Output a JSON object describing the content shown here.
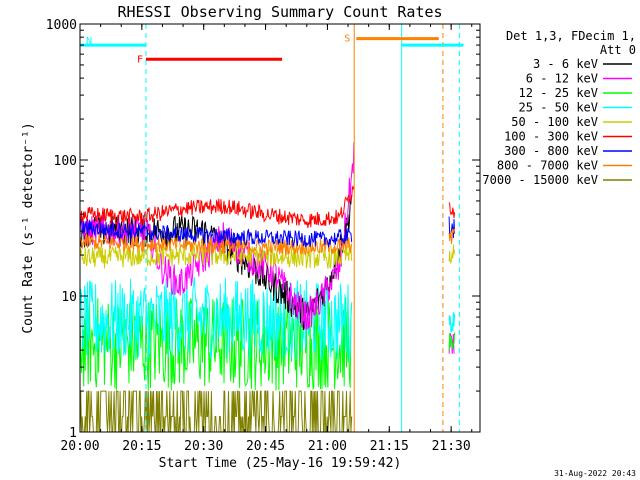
{
  "chart_data": {
    "type": "line",
    "title": "RHESSI Observing Summary Count Rates",
    "xlabel": "Start Time (25-May-16 19:59:42)",
    "ylabel": "Count Rate (s⁻¹ detector⁻¹)",
    "y_scale": "log",
    "xlim": [
      "20:00",
      "21:37"
    ],
    "ylim": [
      1,
      1000
    ],
    "x_ticks": [
      "20:00",
      "20:15",
      "20:30",
      "20:45",
      "21:00",
      "21:15",
      "21:30"
    ],
    "y_ticks": [
      "1",
      "10",
      "100",
      "1000"
    ],
    "legend_header": [
      "Det 1,3, FDecim 1,",
      "Att 0"
    ],
    "legend_position": "right",
    "series": [
      {
        "name": "3 - 6 keV",
        "color": "#000000",
        "x": [
          "20:00",
          "20:10",
          "20:20",
          "20:30",
          "20:40",
          "20:50",
          "20:55",
          "21:00",
          "21:05",
          "21:06"
        ],
        "values": [
          30,
          30,
          30,
          30,
          18,
          10,
          7,
          12,
          35,
          60
        ]
      },
      {
        "name": "6 - 12 keV",
        "color": "#ff00ff",
        "x": [
          "20:00",
          "20:16",
          "20:20",
          "20:24",
          "20:27",
          "20:35",
          "20:40",
          "20:47",
          "20:52",
          "20:55",
          "20:58",
          "21:03",
          "21:06",
          "21:06.5"
        ],
        "values": [
          30,
          30,
          16,
          12,
          15,
          28,
          20,
          15,
          9,
          7,
          9,
          16,
          80,
          130
        ]
      },
      {
        "name": "12 - 25 keV",
        "color": "#00ff00",
        "x": [
          "20:00",
          "20:30",
          "21:00",
          "21:06"
        ],
        "values": [
          4.5,
          4.5,
          4.5,
          4.5
        ]
      },
      {
        "name": "25 - 50 keV",
        "color": "#00ffff",
        "x": [
          "20:00",
          "20:30",
          "21:00",
          "21:06"
        ],
        "values": [
          6.5,
          7,
          6.5,
          6.5
        ]
      },
      {
        "name": "50 - 100 keV",
        "color": "#cccc00",
        "x": [
          "20:00",
          "20:30",
          "21:00",
          "21:06"
        ],
        "values": [
          19,
          20,
          19,
          20
        ]
      },
      {
        "name": "100 - 300 keV",
        "color": "#ff0000",
        "x": [
          "20:00",
          "20:15",
          "20:25",
          "20:35",
          "20:45",
          "20:55",
          "21:03",
          "21:06",
          "21:06.5"
        ],
        "values": [
          40,
          38,
          44,
          46,
          40,
          36,
          38,
          60,
          75
        ]
      },
      {
        "name": "300 - 800 keV",
        "color": "#0000ff",
        "x": [
          "20:00",
          "20:20",
          "20:40",
          "21:00",
          "21:06"
        ],
        "values": [
          32,
          29,
          27,
          26,
          28
        ]
      },
      {
        "name": "800 - 7000 keV",
        "color": "#ff8000",
        "x": [
          "20:00",
          "20:20",
          "20:40",
          "21:00",
          "21:06"
        ],
        "values": [
          25,
          24,
          23,
          23,
          24
        ]
      },
      {
        "name": "7000 - 15000 keV",
        "color": "#808000",
        "x": [
          "20:00",
          "20:20",
          "20:40",
          "21:00",
          "21:06"
        ],
        "values": [
          1.3,
          1.6,
          1.4,
          1.3,
          1.3
        ]
      }
    ],
    "post_segment": {
      "x": [
        "21:29.5",
        "21:31"
      ],
      "values": {
        "100 - 300 keV": 45,
        "300 - 800 keV": 32,
        "800 - 7000 keV": 26,
        "50 - 100 keV": 20,
        "25 - 50 keV": 6.5,
        "6 - 12 keV": 4.5,
        "12 - 25 keV": 4.5
      }
    },
    "state_bars": [
      {
        "label": "N",
        "color": "#00ffff",
        "x_start": "20:00",
        "x_end": "20:16",
        "y": 700
      },
      {
        "label": "F",
        "color": "#ff0000",
        "x_start": "20:16",
        "x_end": "20:49",
        "y": 550
      },
      {
        "label": "S",
        "color": "#ff8000",
        "x_start": "21:07",
        "x_end": "21:27",
        "y": 780
      },
      {
        "label": "",
        "color": "#00ffff",
        "x_start": "21:18",
        "x_end": "21:33",
        "y": 700
      }
    ],
    "vertical_markers": [
      {
        "x": "20:16",
        "color": "#00ffff",
        "style": "dashed"
      },
      {
        "x": "21:06.5",
        "color": "#ff8000",
        "style": "solid"
      },
      {
        "x": "21:18",
        "color": "#00ffff",
        "style": "solid"
      },
      {
        "x": "21:28",
        "color": "#ff8000",
        "style": "dashed"
      },
      {
        "x": "21:32",
        "color": "#00ffff",
        "style": "dashed"
      }
    ],
    "footer_date": "31-Aug-2022 20:43"
  }
}
